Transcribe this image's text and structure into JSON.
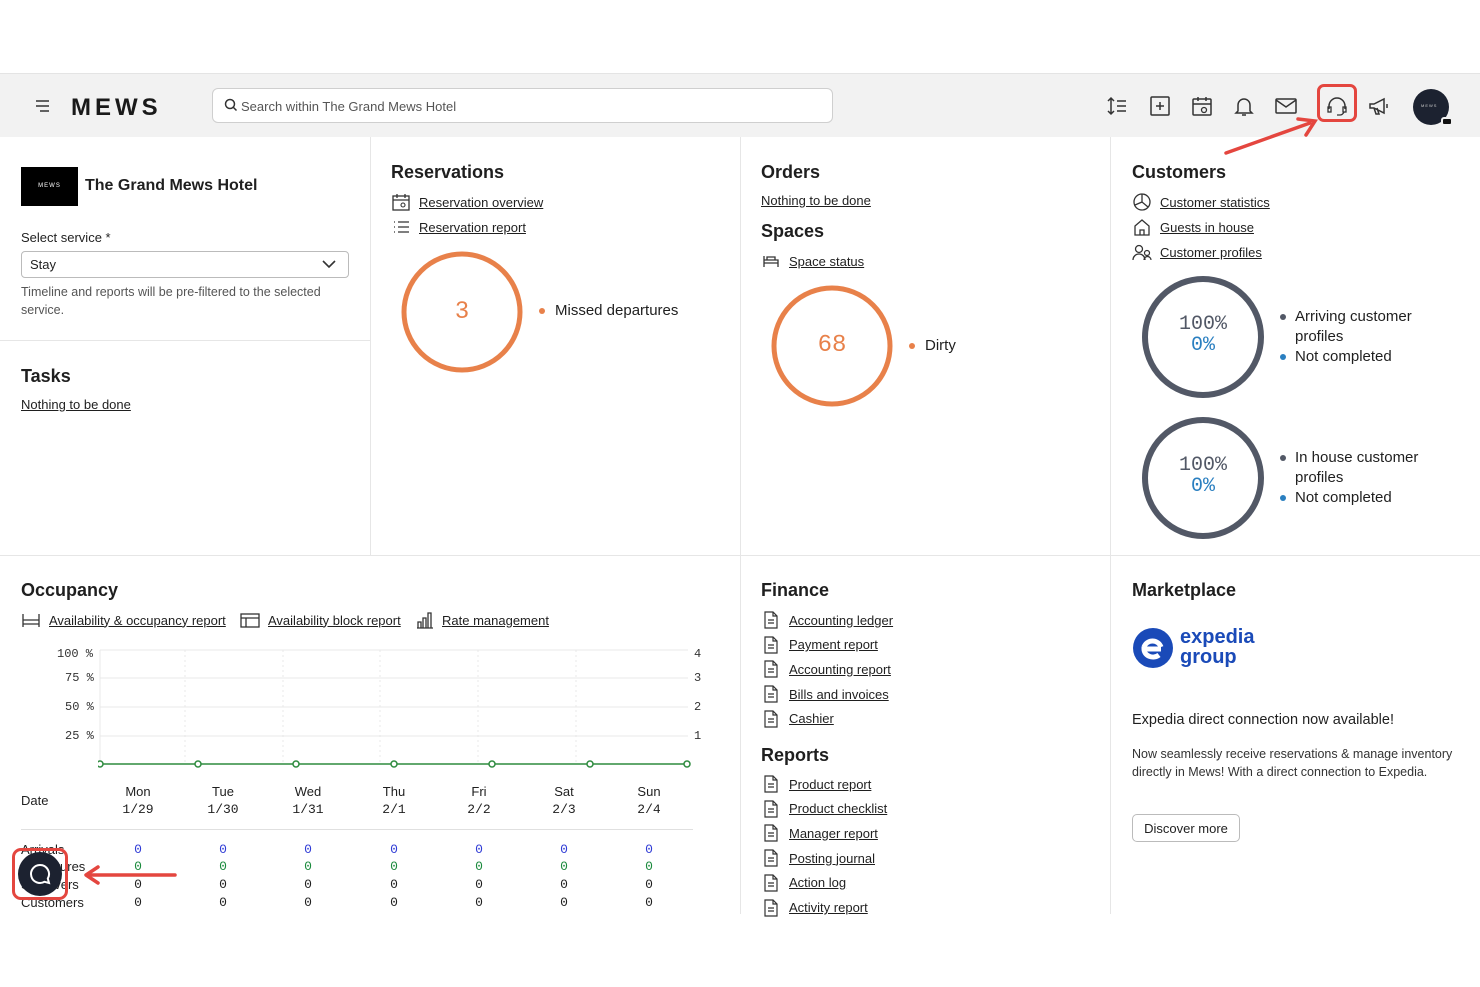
{
  "topbar": {
    "logo": "MEWS",
    "search_placeholder": "Search within The Grand Mews Hotel",
    "icons": [
      "sort-icon",
      "add-icon",
      "calendar-icon",
      "bell-icon",
      "mail-icon",
      "headset-icon",
      "megaphone-icon"
    ],
    "avatar_text": "MEWS"
  },
  "hotel": {
    "logo_text": "MEWS",
    "name": "The Grand Mews Hotel",
    "select_label": "Select service *",
    "select_value": "Stay",
    "hint": "Timeline and reports will be pre-filtered to the selected service."
  },
  "tasks": {
    "title": "Tasks",
    "link": "Nothing to be done"
  },
  "reservations": {
    "title": "Reservations",
    "links": [
      "Reservation overview",
      "Reservation report"
    ],
    "donut_value": "3",
    "donut_label": "Missed departures"
  },
  "orders": {
    "title": "Orders",
    "link": "Nothing to be done"
  },
  "spaces": {
    "title": "Spaces",
    "link": "Space status",
    "donut_value": "68",
    "donut_label": "Dirty"
  },
  "customers": {
    "title": "Customers",
    "links": [
      "Customer statistics",
      "Guests in house",
      "Customer profiles"
    ],
    "donut1": {
      "top": "100%",
      "bottom": "0%",
      "legend1": "Arriving customer profiles",
      "legend2": "Not completed"
    },
    "donut2": {
      "top": "100%",
      "bottom": "0%",
      "legend1": "In house customer profiles",
      "legend2": "Not completed"
    }
  },
  "occupancy": {
    "title": "Occupancy",
    "links": [
      "Availability & occupancy report",
      "Availability block report",
      "Rate management"
    ],
    "y_left": [
      "100 %",
      "75 %",
      "50 %",
      "25 %"
    ],
    "y_right": [
      "4",
      "3",
      "2",
      "1"
    ],
    "date_label": "Date",
    "days": [
      {
        "d": "Mon",
        "date": "1/29"
      },
      {
        "d": "Tue",
        "date": "1/30"
      },
      {
        "d": "Wed",
        "date": "1/31"
      },
      {
        "d": "Thu",
        "date": "2/1"
      },
      {
        "d": "Fri",
        "date": "2/2"
      },
      {
        "d": "Sat",
        "date": "2/3"
      },
      {
        "d": "Sun",
        "date": "2/4"
      }
    ],
    "rows": [
      {
        "label": "Arrivals",
        "values": [
          "0",
          "0",
          "0",
          "0",
          "0",
          "0",
          "0"
        ]
      },
      {
        "label": "Departures",
        "values": [
          "0",
          "0",
          "0",
          "0",
          "0",
          "0",
          "0"
        ]
      },
      {
        "label": "Stayovers",
        "values": [
          "0",
          "0",
          "0",
          "0",
          "0",
          "0",
          "0"
        ]
      },
      {
        "label": "Customers",
        "values": [
          "0",
          "0",
          "0",
          "0",
          "0",
          "0",
          "0"
        ]
      }
    ]
  },
  "finance": {
    "title": "Finance",
    "links": [
      "Accounting ledger",
      "Payment report",
      "Accounting report",
      "Bills and invoices",
      "Cashier"
    ]
  },
  "reports": {
    "title": "Reports",
    "links": [
      "Product report",
      "Product checklist",
      "Manager report",
      "Posting journal",
      "Action log",
      "Activity report"
    ]
  },
  "marketplace": {
    "title": "Marketplace",
    "brand_line1": "expedia",
    "brand_line2": "group",
    "headline": "Expedia direct connection now available!",
    "body": "Now seamlessly receive reservations & manage inventory directly in Mews! With a direct connection to Expedia.",
    "button": "Discover more"
  },
  "colors": {
    "accent": "#e8814a",
    "slate": "#525866",
    "blue": "#2a7fc0",
    "green": "#1a8a3c",
    "highlight": "#e4463f"
  }
}
